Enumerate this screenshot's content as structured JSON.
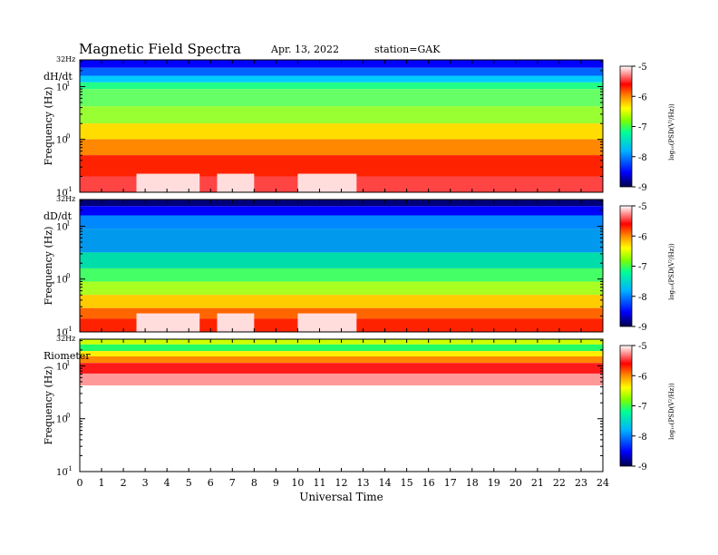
{
  "header": {
    "title": "Magnetic  Field  Spectra",
    "date": "Apr. 13, 2022",
    "station": "station=GAK"
  },
  "colors": {
    "scale": [
      "#00004a",
      "#0000ff",
      "#00b4ff",
      "#00ff96",
      "#7dff00",
      "#ffff00",
      "#ff8c00",
      "#ff0000",
      "#ffffff"
    ]
  },
  "chart_data": [
    {
      "type": "heatmap",
      "panel_label": "dH/dt",
      "top_label": "32Hz",
      "ylabel": "Frequency  (Hz)",
      "yscale": "log",
      "yticks": [
        "10",
        "10",
        "10"
      ],
      "yexp": [
        "-1",
        "0",
        "1"
      ],
      "ylim": [
        0.1,
        32
      ],
      "x": [
        "0",
        "1",
        "2",
        "3",
        "4",
        "5",
        "6",
        "7",
        "8",
        "9",
        "10",
        "11",
        "12",
        "13",
        "14",
        "15",
        "16",
        "17",
        "18",
        "19",
        "20",
        "21",
        "22",
        "23",
        "24"
      ],
      "xlim": [
        0,
        24
      ],
      "colorbar": {
        "label": "log₁₀(PSD(V²/Hz))",
        "ticks": [
          "-5",
          "-6",
          "-7",
          "-8",
          "-9"
        ],
        "range": [
          -9,
          -5
        ]
      }
    },
    {
      "type": "heatmap",
      "panel_label": "dD/dt",
      "top_label": "32Hz",
      "ylabel": "Frequency  (Hz)",
      "yscale": "log",
      "yticks": [
        "10",
        "10",
        "10"
      ],
      "yexp": [
        "-1",
        "0",
        "1"
      ],
      "ylim": [
        0.1,
        32
      ],
      "x": [
        "0",
        "1",
        "2",
        "3",
        "4",
        "5",
        "6",
        "7",
        "8",
        "9",
        "10",
        "11",
        "12",
        "13",
        "14",
        "15",
        "16",
        "17",
        "18",
        "19",
        "20",
        "21",
        "22",
        "23",
        "24"
      ],
      "xlim": [
        0,
        24
      ],
      "colorbar": {
        "label": "log₁₀(PSD(V²/Hz))",
        "ticks": [
          "-5",
          "-6",
          "-7",
          "-8",
          "-9"
        ],
        "range": [
          -9,
          -5
        ]
      }
    },
    {
      "type": "heatmap",
      "panel_label": "Riometer",
      "top_label": "32Hz",
      "ylabel": "Frequency  (Hz)",
      "yscale": "log",
      "yticks": [
        "10",
        "10",
        "10"
      ],
      "yexp": [
        "-1",
        "0",
        "1"
      ],
      "ylim": [
        0.1,
        32
      ],
      "x": [
        "0",
        "1",
        "2",
        "3",
        "4",
        "5",
        "6",
        "7",
        "8",
        "9",
        "10",
        "11",
        "12",
        "13",
        "14",
        "15",
        "16",
        "17",
        "18",
        "19",
        "20",
        "21",
        "22",
        "23",
        "24"
      ],
      "xlim": [
        0,
        24
      ],
      "xlabel": "Universal  Time",
      "colorbar": {
        "label": "log₁₀(PSD(V²/Hz))",
        "ticks": [
          "-5",
          "-6",
          "-7",
          "-8",
          "-9"
        ],
        "range": [
          -9,
          -5
        ]
      }
    }
  ]
}
